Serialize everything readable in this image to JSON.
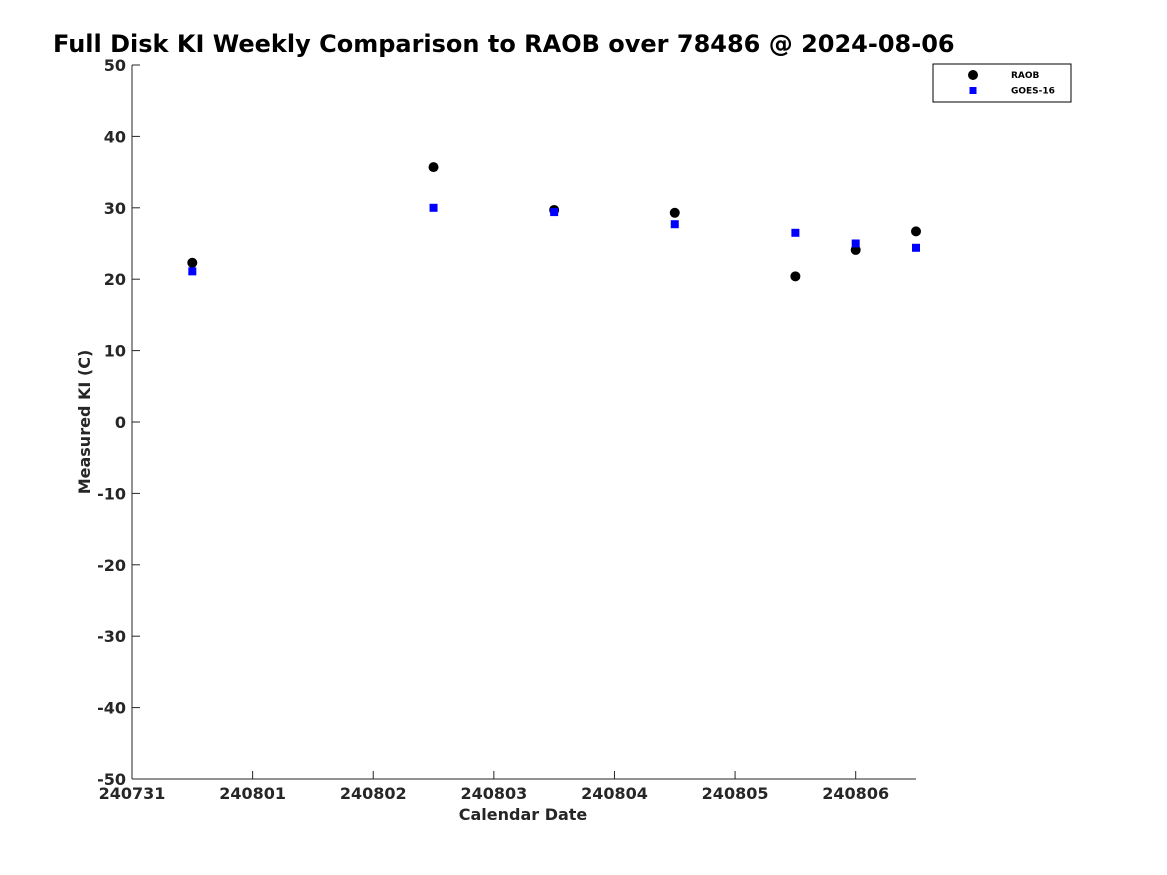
{
  "chart_data": {
    "type": "scatter",
    "title": "Full Disk KI Weekly Comparison to RAOB over 78486 @ 2024-08-06",
    "xlabel": "Calendar Date",
    "ylabel": "Measured KI (C)",
    "xlim": [
      "2024-07-31",
      "2024-08-06 12:00"
    ],
    "ylim": [
      -50,
      50
    ],
    "xticks": [
      "240731",
      "240801",
      "240802",
      "240803",
      "240804",
      "240805",
      "240806"
    ],
    "yticks": [
      50,
      40,
      30,
      20,
      10,
      0,
      -10,
      -20,
      -30,
      -40,
      -50
    ],
    "grid": false,
    "legend_position": "top-right",
    "series": [
      {
        "name": "RAOB",
        "marker": "circle",
        "color": "#000000",
        "x": [
          "2024-07-31 12:00",
          "2024-08-02 12:00",
          "2024-08-03 12:00",
          "2024-08-04 12:00",
          "2024-08-05 12:00",
          "2024-08-06 00:00",
          "2024-08-06 12:00"
        ],
        "y": [
          22.3,
          35.7,
          29.7,
          29.3,
          20.4,
          24.1,
          26.7
        ]
      },
      {
        "name": "GOES-16",
        "marker": "square",
        "color": "#0000ff",
        "x": [
          "2024-07-31 12:00",
          "2024-08-02 12:00",
          "2024-08-03 12:00",
          "2024-08-04 12:00",
          "2024-08-05 12:00",
          "2024-08-06 00:00",
          "2024-08-06 12:00"
        ],
        "y": [
          21.1,
          30.0,
          29.4,
          27.7,
          26.5,
          25.0,
          24.4
        ]
      }
    ]
  }
}
